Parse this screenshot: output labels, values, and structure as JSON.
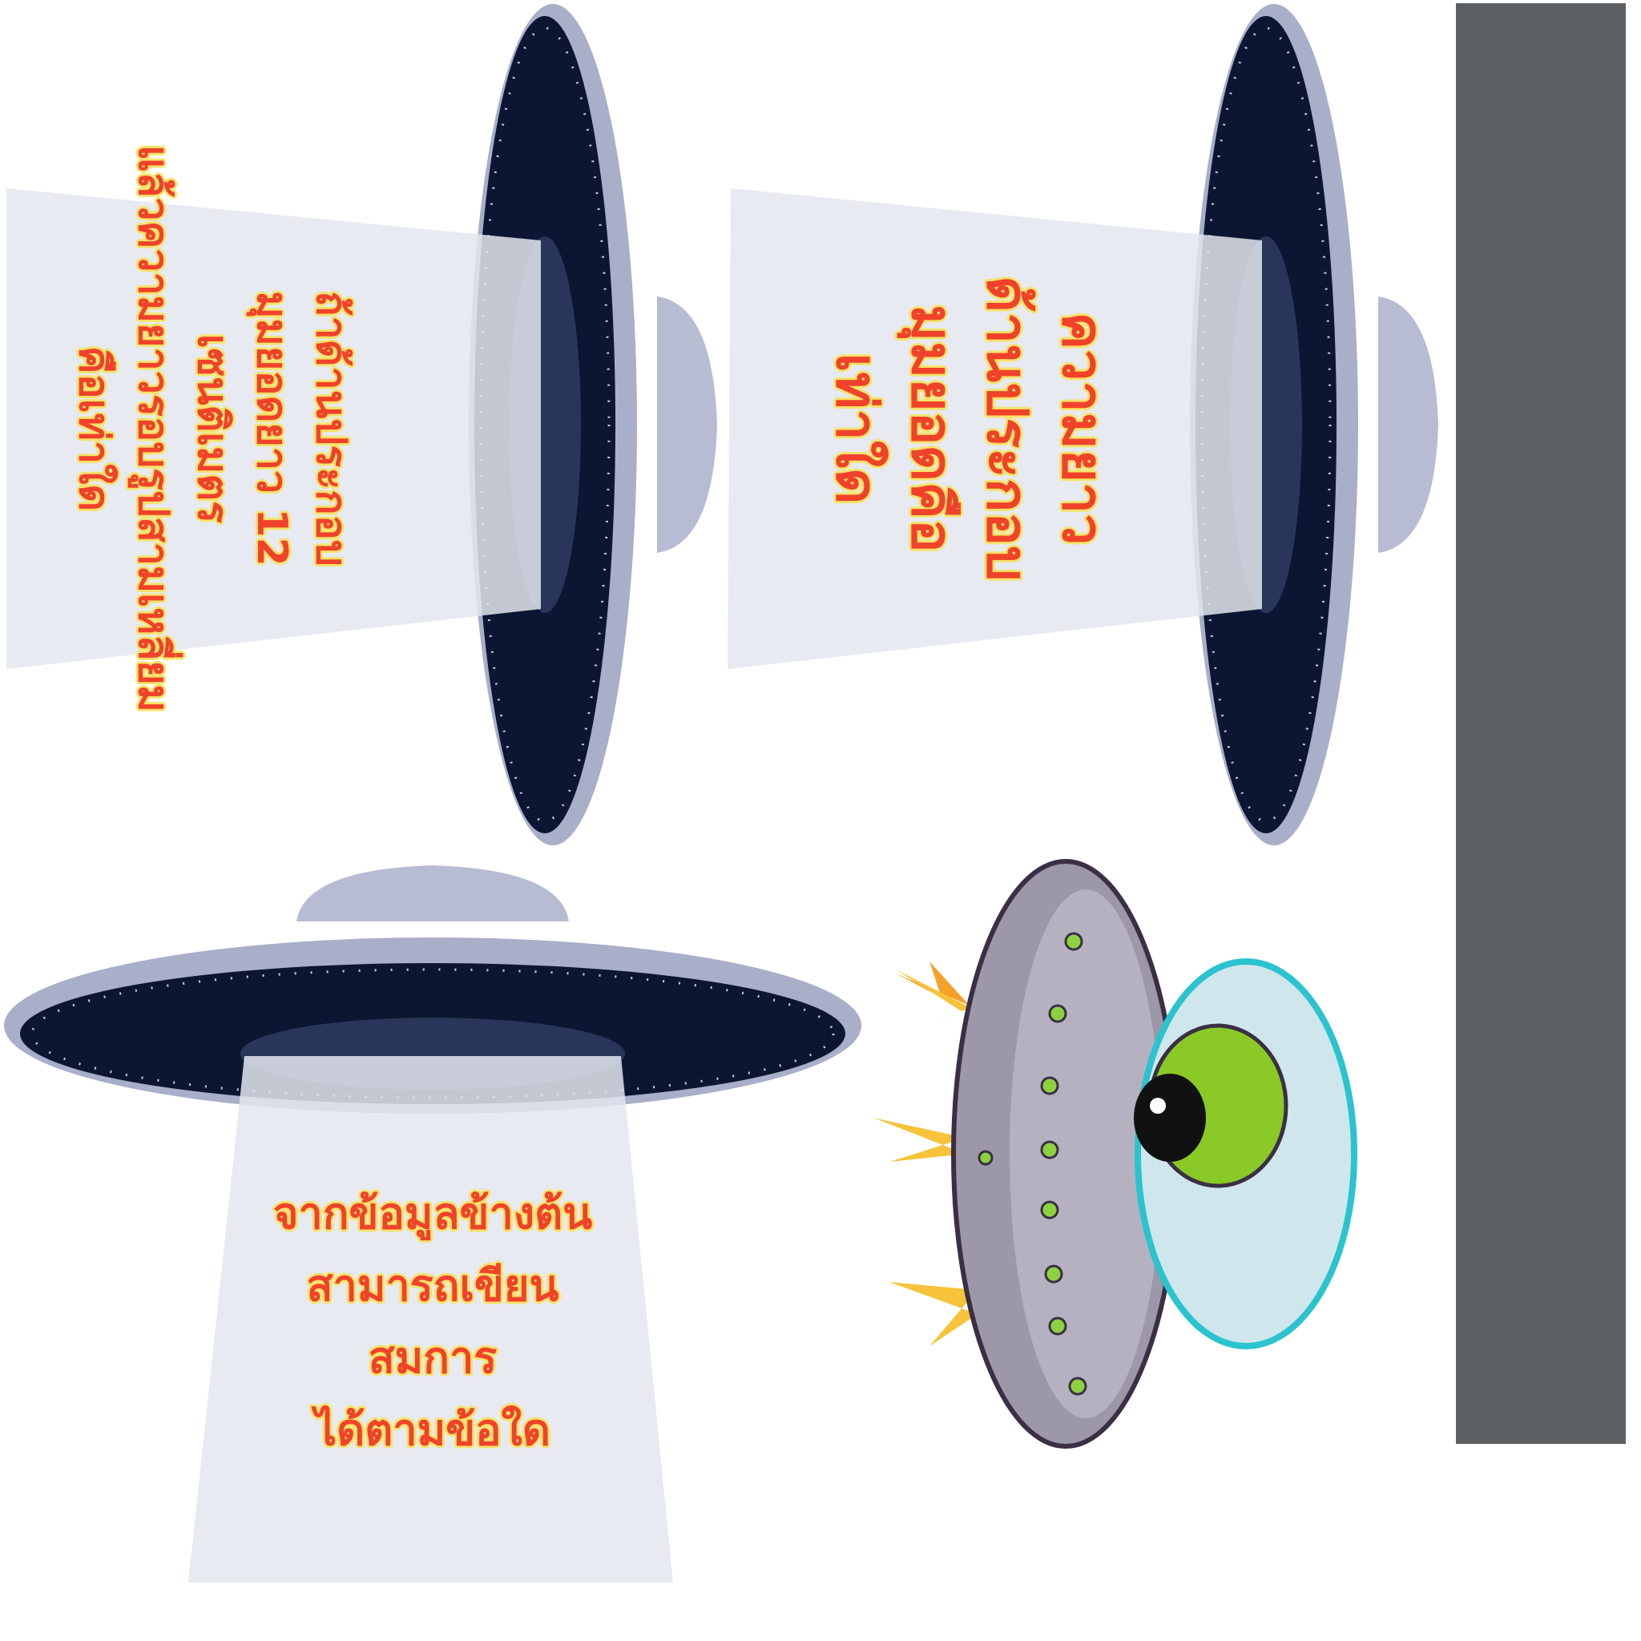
{
  "question_left": {
    "lines": [
      "ถ้าด้านประกอบ",
      "มุมยอดยาว 12",
      "เซนติเมตร",
      "แล้วความยาวรอบรูปสามเหลี่ยม",
      "คือเท่าใด"
    ]
  },
  "question_middle": {
    "lines": [
      "ความยาว",
      "ด้านประกอบ",
      "มุมยอดคือ",
      "เท่าใด"
    ]
  },
  "question_bottom": {
    "lines": [
      "จากข้อมูลข้างต้น",
      "สามารถเขียน",
      "สมการ",
      "ได้ตามข้อใด"
    ]
  },
  "colors": {
    "text_red": "#f0422b",
    "text_outline": "#f7e36b",
    "beam": "#e3e6ef",
    "saucer_dark": "#0c1633",
    "saucer_rim": "#a9aec9",
    "side_bar": "#5d6062",
    "alien_green": "#8ac926"
  },
  "icons": [
    "ufo-beam-icon",
    "ufo-beam-icon",
    "ufo-beam-icon",
    "alien-ufo-icon"
  ]
}
